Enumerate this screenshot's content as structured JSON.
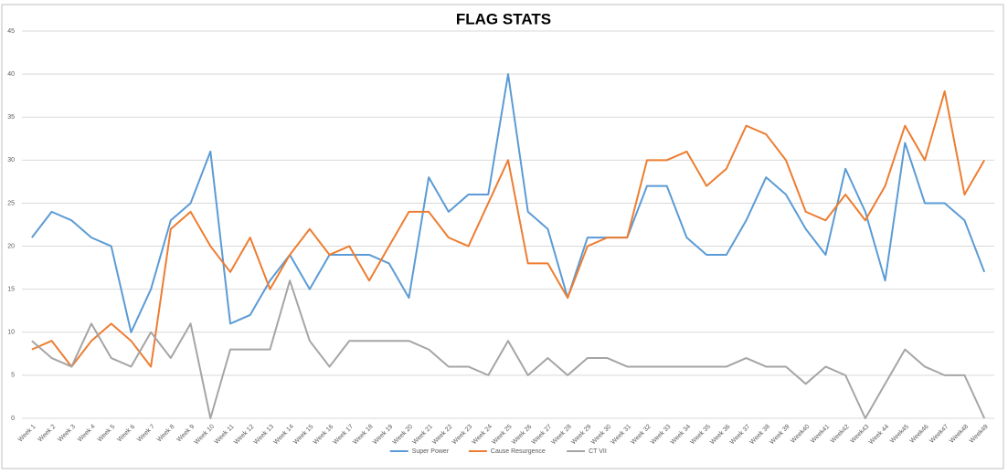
{
  "chart_data": {
    "type": "line",
    "title": "FLAG STATS",
    "categories": [
      "Week 1",
      "Week 2",
      "Week 3",
      "Week 4",
      "Week 5",
      "Week 6",
      "Week 7",
      "Week 8",
      "Week 9",
      "Week 10",
      "Week 11",
      "Week 12",
      "Week 13",
      "Week 14",
      "Week 15",
      "Week 16",
      "Week 17",
      "Week 18",
      "Week 19",
      "Week 20",
      "Week 21",
      "Week 22",
      "Week 23",
      "Week 24",
      "Week 25",
      "Week 26",
      "Week 27",
      "Week 28",
      "Week 29",
      "Week 30",
      "Week 31",
      "Week 32",
      "Week 33",
      "Week 34",
      "Week 35",
      "Week 36",
      "Week 37",
      "Week 38",
      "Week 39",
      "Week40",
      "Week41",
      "Week42",
      "Week43",
      "Week 44",
      "Week45",
      "Week46",
      "Week47",
      "Week48",
      "Week49"
    ],
    "series": [
      {
        "name": "Super Power",
        "color": "#5b9bd5",
        "values": [
          21,
          24,
          23,
          21,
          20,
          10,
          15,
          23,
          25,
          31,
          11,
          12,
          16,
          19,
          15,
          19,
          19,
          19,
          18,
          14,
          28,
          24,
          26,
          26,
          40,
          24,
          22,
          14,
          21,
          21,
          21,
          27,
          27,
          21,
          19,
          19,
          23,
          28,
          26,
          22,
          19,
          29,
          24,
          16,
          32,
          25,
          25,
          23,
          17
        ]
      },
      {
        "name": "Cause Resurgence",
        "color": "#ed7d31",
        "values": [
          8,
          9,
          6,
          9,
          11,
          9,
          6,
          22,
          24,
          20,
          17,
          21,
          15,
          19,
          22,
          19,
          20,
          16,
          20,
          24,
          24,
          21,
          20,
          25,
          30,
          18,
          18,
          14,
          20,
          21,
          21,
          30,
          30,
          31,
          27,
          29,
          34,
          33,
          30,
          24,
          23,
          26,
          23,
          27,
          34,
          30,
          38,
          26,
          30
        ]
      },
      {
        "name": "CT VII",
        "color": "#a5a5a5",
        "values": [
          9,
          7,
          6,
          11,
          7,
          6,
          10,
          7,
          11,
          0,
          8,
          8,
          8,
          16,
          9,
          6,
          9,
          9,
          9,
          9,
          8,
          6,
          6,
          5,
          9,
          5,
          7,
          5,
          7,
          7,
          6,
          6,
          6,
          6,
          6,
          6,
          7,
          6,
          6,
          4,
          6,
          5,
          0,
          4,
          8,
          6,
          5,
          5,
          0
        ]
      }
    ],
    "ylim": [
      0,
      45
    ],
    "yticks": [
      0,
      5,
      10,
      15,
      20,
      25,
      30,
      35,
      40,
      45
    ],
    "grid": true,
    "legend": "bottom"
  }
}
